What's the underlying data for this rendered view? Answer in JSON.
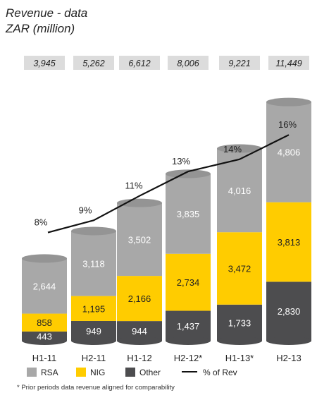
{
  "chart_data": {
    "type": "bar",
    "stacked": true,
    "title": "Revenue - data",
    "subtitle": "ZAR (million)",
    "categories": [
      "H1-11",
      "H2-11",
      "H1-12",
      "H2-12*",
      "H1-13*",
      "H2-13"
    ],
    "series": [
      {
        "name": "Other",
        "color": "#4d4d4f",
        "values": [
          443,
          949,
          944,
          1437,
          1733,
          2830
        ],
        "labels": [
          "443",
          "949",
          "944",
          "1,437",
          "1,733",
          "2,830"
        ]
      },
      {
        "name": "NIG",
        "color": "#ffcc00",
        "values": [
          858,
          1195,
          2166,
          2734,
          3472,
          3813
        ],
        "labels": [
          "858",
          "1,195",
          "2,166",
          "2,734",
          "3,472",
          "3,813"
        ]
      },
      {
        "name": "RSA",
        "color": "#a8a8a8",
        "values": [
          2644,
          3118,
          3502,
          3835,
          4016,
          4806
        ],
        "labels": [
          "2,644",
          "3,118",
          "3,502",
          "3,835",
          "4,016",
          "4,806"
        ]
      }
    ],
    "totals": [
      "3,945",
      "5,262",
      "6,612",
      "8,006",
      "9,221",
      "11,449"
    ],
    "line": {
      "name": "% of Rev",
      "color": "#111111",
      "values": [
        8,
        9,
        11,
        13,
        14,
        16
      ],
      "labels": [
        "8%",
        "9%",
        "11%",
        "13%",
        "14%",
        "16%"
      ]
    },
    "legend_position": "bottom",
    "grid": false
  },
  "legend": [
    {
      "name": "RSA",
      "kind": "swatch",
      "color": "#a8a8a8"
    },
    {
      "name": "NIG",
      "kind": "swatch",
      "color": "#ffcc00"
    },
    {
      "name": "Other",
      "kind": "swatch",
      "color": "#4d4d4f"
    },
    {
      "name": "% of Rev",
      "kind": "line",
      "color": "#111111"
    }
  ],
  "footnote": "* Prior periods data revenue aligned for comparability"
}
